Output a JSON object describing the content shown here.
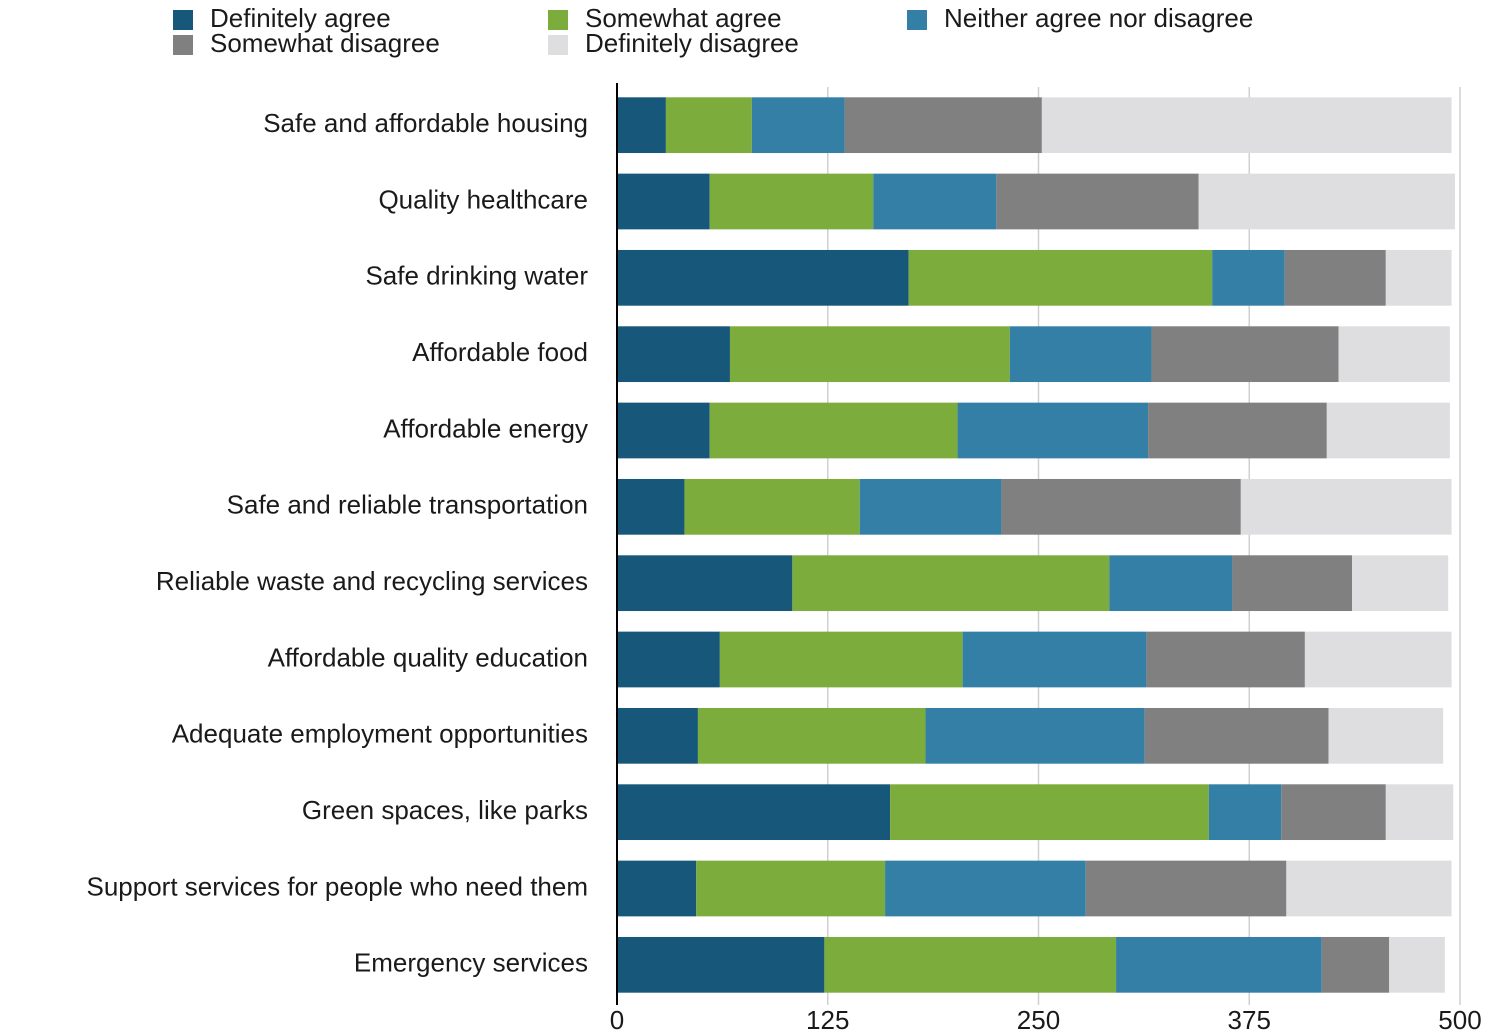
{
  "chart_data": {
    "type": "stacked_bar_horizontal",
    "categories": [
      "Safe and affordable housing",
      "Quality healthcare",
      "Safe drinking water",
      "Affordable food",
      "Affordable energy",
      "Safe and reliable transportation",
      "Reliable waste and recycling services",
      "Affordable quality education",
      "Adequate employment opportunities",
      "Green spaces, like parks",
      "Support services for people who need them",
      "Emergency services"
    ],
    "series": [
      {
        "name": "Definitely agree",
        "color": "#17587a",
        "values": [
          29,
          55,
          173,
          67,
          55,
          40,
          104,
          61,
          48,
          162,
          47,
          123
        ]
      },
      {
        "name": "Somewhat agree",
        "color": "#7cac3c",
        "values": [
          51,
          97,
          180,
          166,
          147,
          104,
          188,
          144,
          135,
          189,
          112,
          173
        ]
      },
      {
        "name": "Neither agree nor disagree",
        "color": "#347fa6",
        "values": [
          55,
          73,
          43,
          84,
          113,
          84,
          73,
          109,
          130,
          43,
          119,
          122
        ]
      },
      {
        "name": "Somewhat disagree",
        "color": "#808080",
        "values": [
          117,
          120,
          60,
          111,
          106,
          142,
          71,
          94,
          109,
          62,
          119,
          40
        ]
      },
      {
        "name": "Definitely disagree",
        "color": "#dedde0",
        "values": [
          243,
          152,
          39,
          66,
          73,
          125,
          57,
          87,
          68,
          40,
          98,
          33
        ]
      }
    ],
    "xlim": [
      0,
      500
    ],
    "xticks": [
      0,
      125,
      250,
      375,
      500
    ],
    "grid": true
  }
}
